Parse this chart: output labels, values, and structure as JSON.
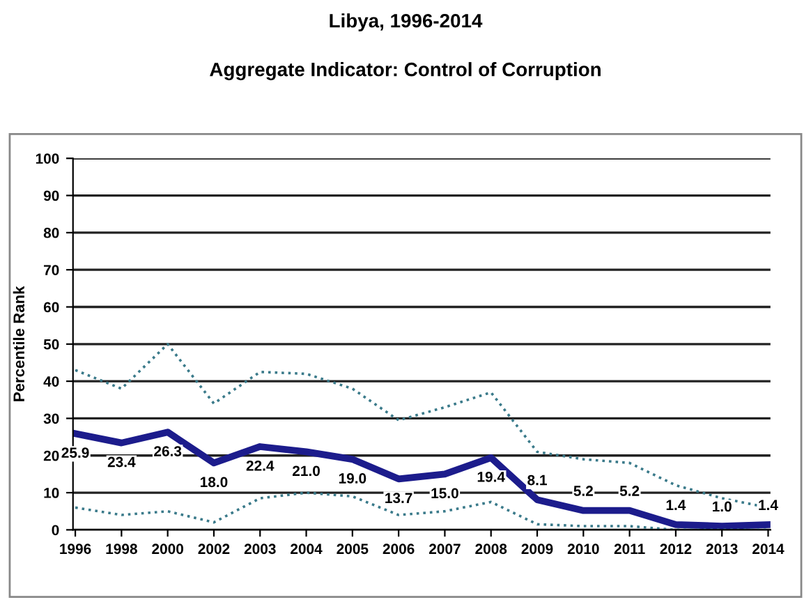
{
  "chart_data": {
    "type": "line",
    "title": "Libya, 1996-2014",
    "subtitle": "Aggregate Indicator: Control of Corruption",
    "ylabel": "Percentile Rank",
    "categories": [
      "1996",
      "1998",
      "2000",
      "2002",
      "2003",
      "2004",
      "2005",
      "2006",
      "2007",
      "2008",
      "2009",
      "2010",
      "2011",
      "2012",
      "2013",
      "2014"
    ],
    "series": [
      {
        "color": "#3a7a8a",
        "line_style": "dotted",
        "values": [
          43,
          38,
          50,
          34,
          42.5,
          42,
          38,
          29.5,
          33,
          37,
          21,
          19,
          18,
          12,
          8.5,
          6
        ]
      },
      {
        "color": "#1c1c8c",
        "line_style": "solid",
        "values": [
          25.9,
          23.4,
          26.3,
          18.0,
          22.4,
          21.0,
          19.0,
          13.7,
          15.0,
          19.4,
          8.1,
          5.2,
          5.2,
          1.4,
          1.0,
          1.4
        ],
        "value_labels": [
          "25.9",
          "23.4",
          "26.3",
          "18.0",
          "22.4",
          "21.0",
          "19.0",
          "13.7",
          "15.0",
          "19.4",
          "8.1",
          "5.2",
          "5.2",
          "1.4",
          "1.0",
          "1.4"
        ]
      },
      {
        "color": "#3a7a8a",
        "line_style": "dotted",
        "values": [
          6,
          4,
          5,
          2,
          8.5,
          10,
          9,
          4,
          5,
          7.5,
          1.5,
          1,
          1,
          0,
          0,
          0
        ]
      }
    ],
    "ylim": [
      0,
      100
    ],
    "yticks": [
      0,
      10,
      20,
      30,
      40,
      50,
      60,
      70,
      80,
      90,
      100
    ],
    "grid": "y",
    "legend": false
  }
}
